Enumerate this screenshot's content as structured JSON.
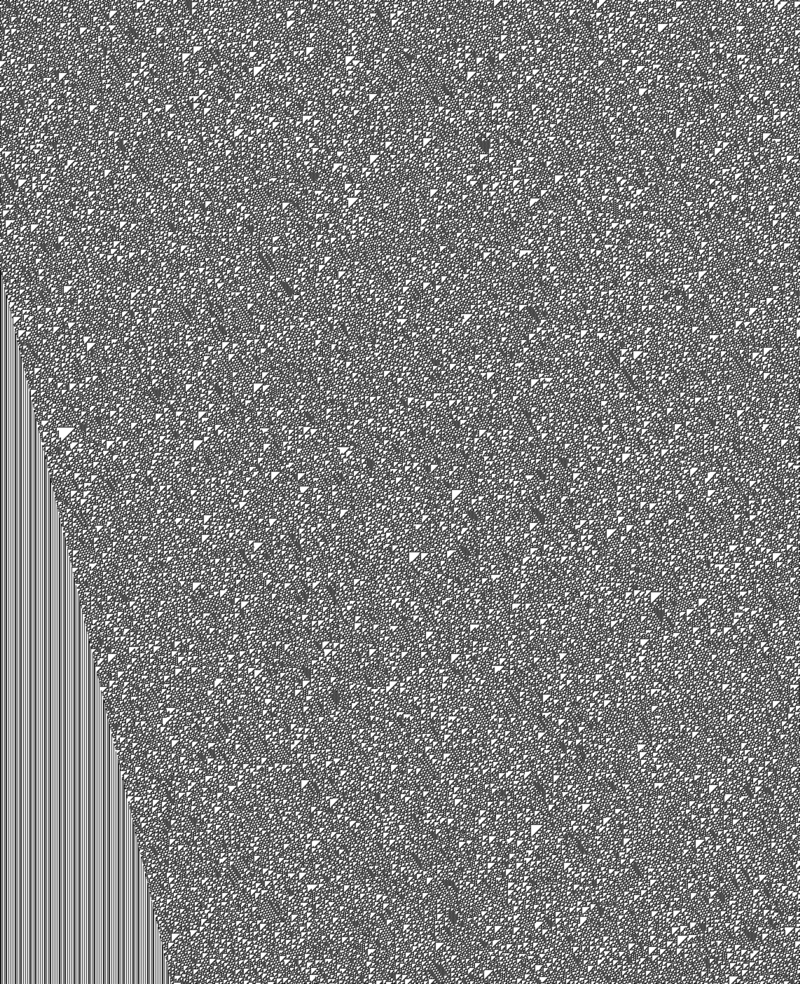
{
  "colors": {
    "ink": "#111111",
    "paper": "#ffffff"
  },
  "pattern": {
    "description_kind": "automaton-texture",
    "seed": 13
  }
}
